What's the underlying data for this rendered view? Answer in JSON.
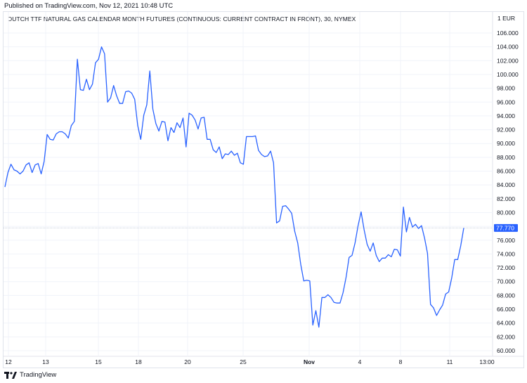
{
  "header": {
    "published": "Published on TradingView.com, Nov 12, 2021 10:48 UTC"
  },
  "footer": {
    "brand": "TradingView"
  },
  "colors": {
    "line": "#2962ff",
    "grid": "#f0f3fa",
    "text": "#131722"
  },
  "chart_data": {
    "type": "line",
    "title": "DUTCH TTF NATURAL GAS CALENDAR MONTH FUTURES (CONTINUOUS: CURRENT CONTRACT IN FRONT), 30, NYMEX",
    "currency_label": "1 EUR",
    "last_price_label": "77.770",
    "ylim": [
      59,
      108
    ],
    "yticks": [
      60,
      62,
      64,
      66,
      68,
      70,
      72,
      74,
      76,
      78,
      80,
      82,
      84,
      86,
      88,
      90,
      92,
      94,
      96,
      98,
      100,
      102,
      104,
      106
    ],
    "ytick_labels": [
      "60.000",
      "62.000",
      "64.000",
      "66.000",
      "68.000",
      "70.000",
      "72.000",
      "74.000",
      "76.000",
      "78.000",
      "80.000",
      "82.000",
      "84.000",
      "86.000",
      "88.000",
      "90.000",
      "92.000",
      "94.000",
      "96.000",
      "98.000",
      "100.000",
      "102.000",
      "104.000",
      "106.000"
    ],
    "xtick_labels": [
      "12",
      "13",
      "15",
      "18",
      "20",
      "25",
      "Nov",
      "4",
      "8",
      "11",
      "13:00"
    ],
    "grid": true,
    "series": [
      {
        "values": [
          83.7,
          85.8,
          87.0,
          86.2,
          86.0,
          85.6,
          86.0,
          86.9,
          87.2,
          85.8,
          86.9,
          87.1,
          85.6,
          87.4,
          91.3,
          90.6,
          90.5,
          91.4,
          91.7,
          91.7,
          91.4,
          90.8,
          92.6,
          93.2,
          102.2,
          97.8,
          97.7,
          99.3,
          97.8,
          98.6,
          101.7,
          102.2,
          104.0,
          103.0,
          96.0,
          96.6,
          98.4,
          96.9,
          95.8,
          95.8,
          97.5,
          97.6,
          97.3,
          96.4,
          92.6,
          90.6,
          94.1,
          95.6,
          100.5,
          95.0,
          92.9,
          91.8,
          93.2,
          93.1,
          90.4,
          92.3,
          91.6,
          93.0,
          92.3,
          93.7,
          89.5,
          94.4,
          94.1,
          93.4,
          92.1,
          93.7,
          93.8,
          90.6,
          90.6,
          89.1,
          88.7,
          89.5,
          87.8,
          88.5,
          88.4,
          88.9,
          88.3,
          88.6,
          87.2,
          87.0,
          91.0,
          91.0,
          91.0,
          91.1,
          89.0,
          88.4,
          88.1,
          88.2,
          88.9,
          87.2,
          78.5,
          78.8,
          80.9,
          81.0,
          80.5,
          79.9,
          77.3,
          75.6,
          72.5,
          70.1,
          70.2,
          70.1,
          63.7,
          65.8,
          63.4,
          67.7,
          67.7,
          68.1,
          67.7,
          67.0,
          66.9,
          66.9,
          68.4,
          70.6,
          73.5,
          73.8,
          75.6,
          78.1,
          80.1,
          77.5,
          75.4,
          74.4,
          75.6,
          73.8,
          72.9,
          73.4,
          73.4,
          73.9,
          73.6,
          74.7,
          74.6,
          73.7,
          80.8,
          77.2,
          79.3,
          77.9,
          78.3,
          77.7,
          78.1,
          76.3,
          74.1,
          66.7,
          66.2,
          65.1,
          65.9,
          66.6,
          68.2,
          68.5,
          70.5,
          73.2,
          73.2,
          75.2,
          77.77
        ]
      }
    ]
  }
}
